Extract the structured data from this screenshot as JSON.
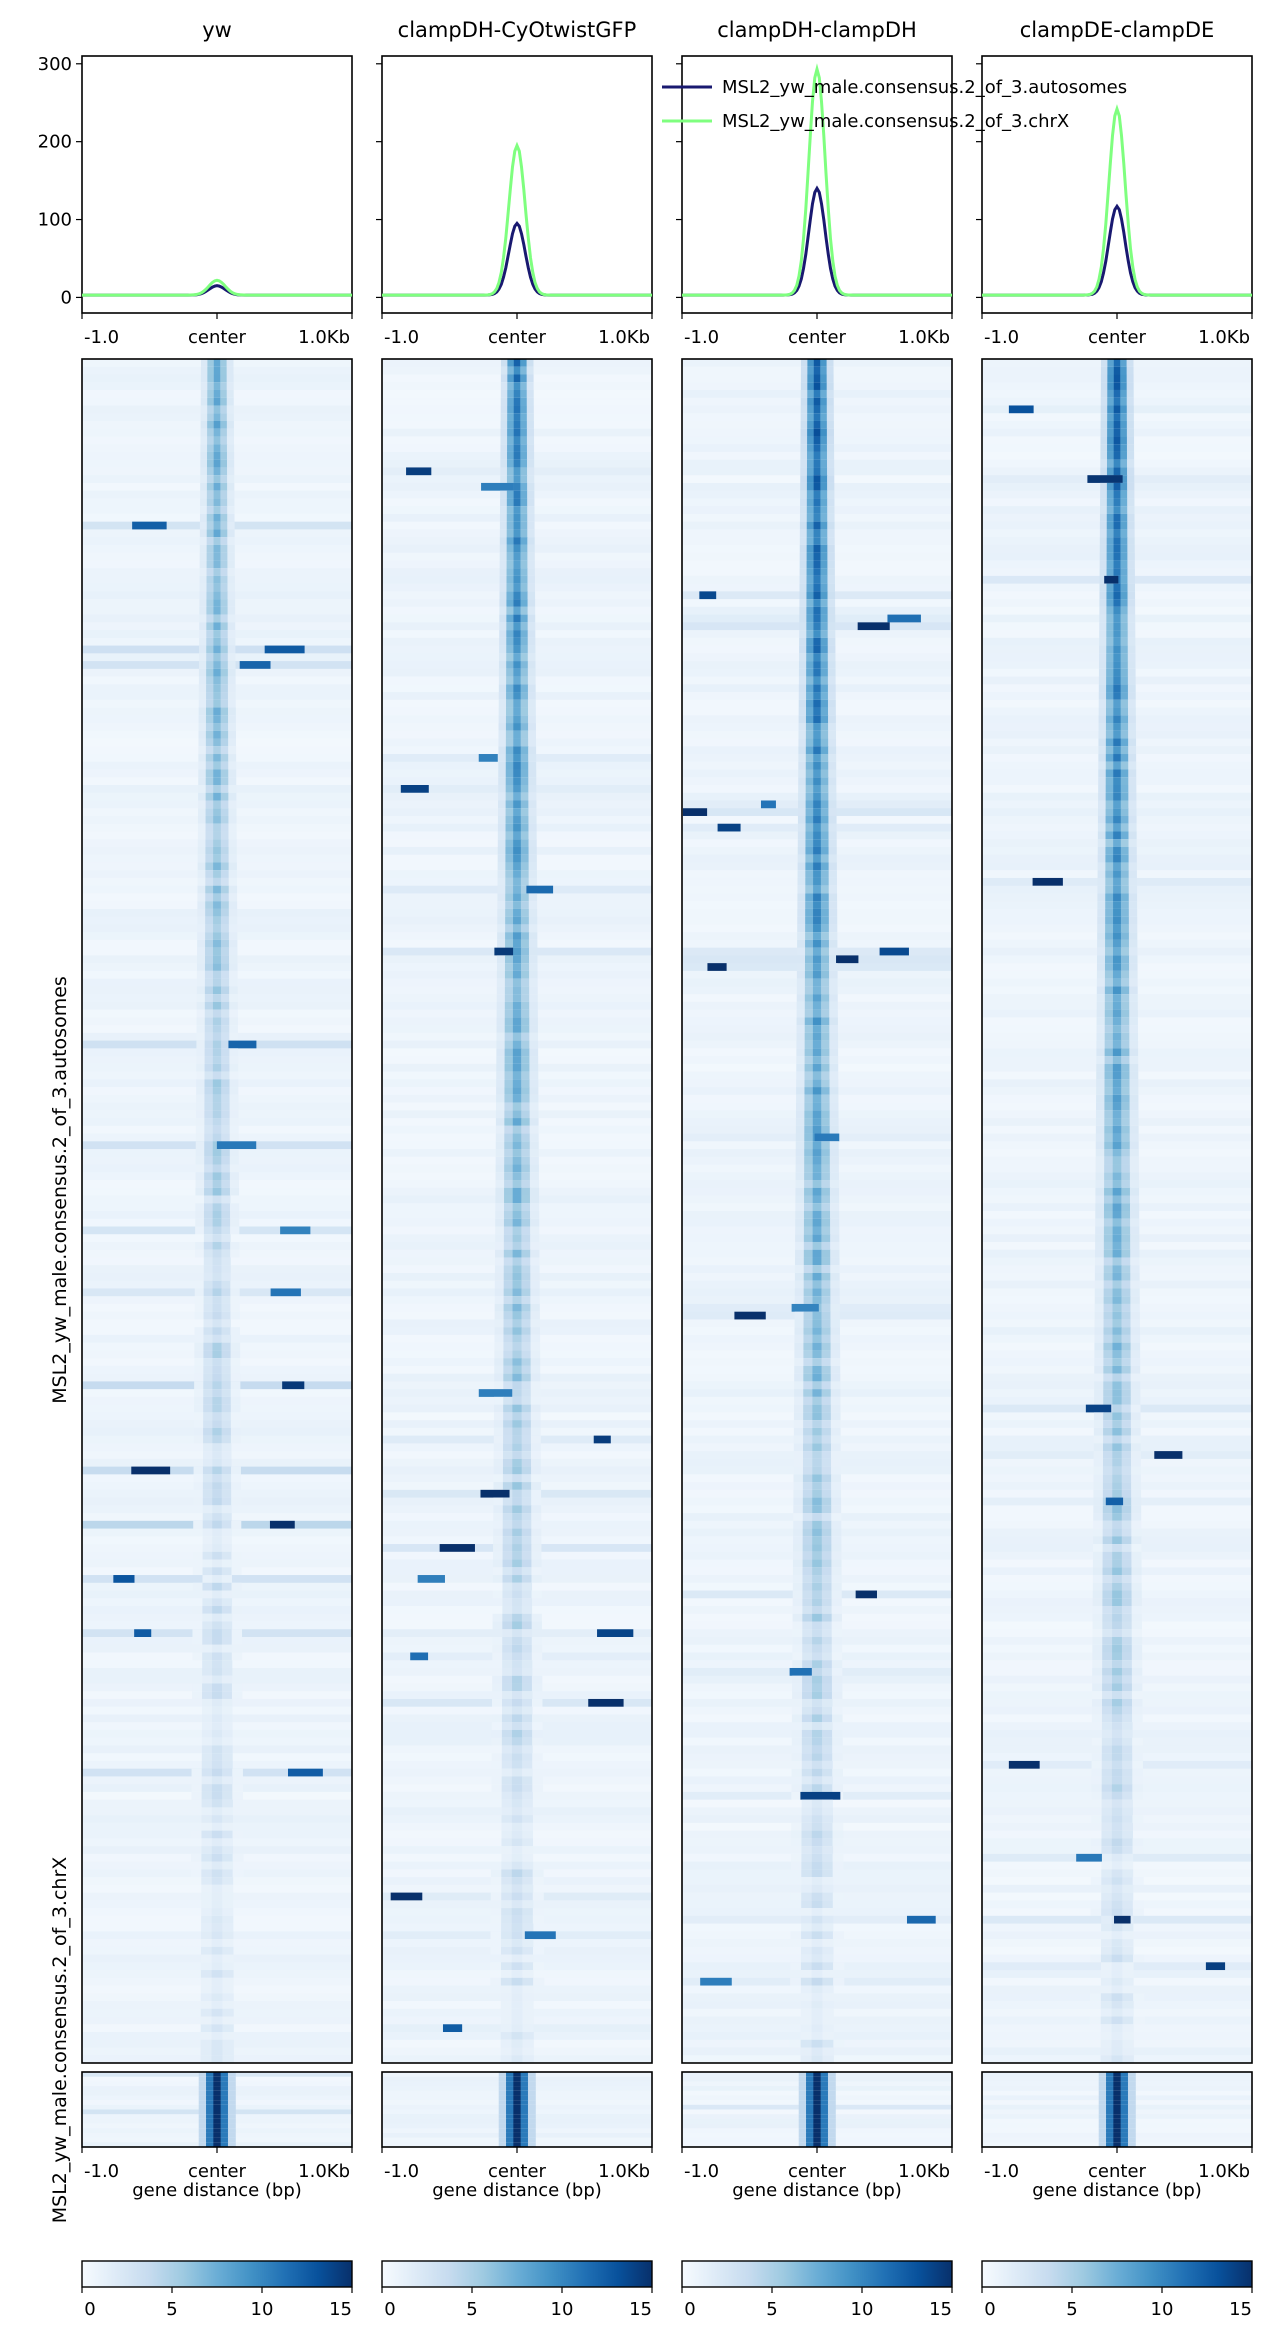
{
  "chart_data": {
    "type": "heatmap",
    "panel_titles": [
      "yw",
      "clampDH-CyOtwistGFP",
      "clampDH-clampDH",
      "clampDE-clampDE"
    ],
    "profile": {
      "type": "line",
      "x_ticks": [
        "-1.0",
        "center",
        "1.0Kb"
      ],
      "y_ticks": [
        0,
        100,
        200,
        300
      ],
      "ylim": [
        -20,
        310
      ],
      "series": [
        {
          "name": "MSL2_yw_male.consensus.2_of_3.autosomes",
          "color": "#191970",
          "baseline": [
            3,
            3,
            3,
            3
          ],
          "peak": [
            15,
            95,
            140,
            117
          ]
        },
        {
          "name": "MSL2_yw_male.consensus.2_of_3.chrX",
          "color": "#7fff7f",
          "baseline": [
            3,
            3,
            3,
            3
          ],
          "peak": [
            22,
            195,
            293,
            242
          ]
        }
      ]
    },
    "heatmap": {
      "colormap": "Blues",
      "vmin": 0,
      "vmax": 15,
      "groups": [
        "MSL2_yw_male.consensus.2_of_3.autosomes",
        "MSL2_yw_male.consensus.2_of_3.chrX"
      ],
      "ylabel_autosomes": "MSL2_yw_male.consensus.2_of_3.autosomes",
      "ylabel_chrX": "MSL2_yw_male.consensus.2_of_3.chrX",
      "x_ticks": [
        "-1.0",
        "center",
        "1.0Kb"
      ],
      "xlabel": "gene distance (bp)",
      "colorbar_ticks": [
        0,
        5,
        10,
        15
      ]
    },
    "legend_placement": "top-right"
  }
}
